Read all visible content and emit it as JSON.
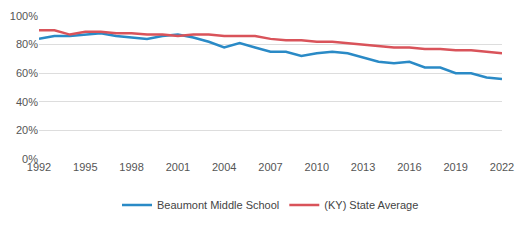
{
  "chart_data": {
    "type": "line",
    "x": [
      1992,
      1993,
      1994,
      1995,
      1996,
      1997,
      1998,
      1999,
      2000,
      2001,
      2002,
      2003,
      2004,
      2005,
      2006,
      2007,
      2008,
      2009,
      2010,
      2011,
      2012,
      2013,
      2014,
      2015,
      2016,
      2017,
      2018,
      2019,
      2020,
      2021,
      2022
    ],
    "series": [
      {
        "name": "Beaumont Middle School",
        "color": "#2a8ac6",
        "values": [
          84,
          86,
          86,
          87,
          88,
          86,
          85,
          84,
          86,
          87,
          85,
          82,
          78,
          81,
          78,
          75,
          75,
          72,
          74,
          75,
          74,
          71,
          68,
          67,
          68,
          64,
          64,
          60,
          60,
          57,
          56
        ]
      },
      {
        "name": "(KY) State Average",
        "color": "#d9535a",
        "values": [
          90,
          90,
          87,
          89,
          89,
          88,
          88,
          87,
          87,
          86,
          87,
          87,
          86,
          86,
          86,
          84,
          83,
          83,
          82,
          82,
          81,
          80,
          79,
          78,
          78,
          77,
          77,
          76,
          76,
          75,
          74
        ]
      }
    ],
    "xlim": [
      1992,
      2022
    ],
    "xticks": [
      1992,
      1995,
      1998,
      2001,
      2004,
      2007,
      2010,
      2013,
      2016,
      2019,
      2022
    ],
    "ylim": [
      0,
      100
    ],
    "yticks": [
      {
        "value": 0,
        "label": "0%"
      },
      {
        "value": 20,
        "label": "20%"
      },
      {
        "value": 40,
        "label": "40%"
      },
      {
        "value": 60,
        "label": "60%"
      },
      {
        "value": 80,
        "label": "80%"
      },
      {
        "value": 100,
        "label": "100%"
      }
    ],
    "grid": true,
    "legend": "bottom"
  }
}
